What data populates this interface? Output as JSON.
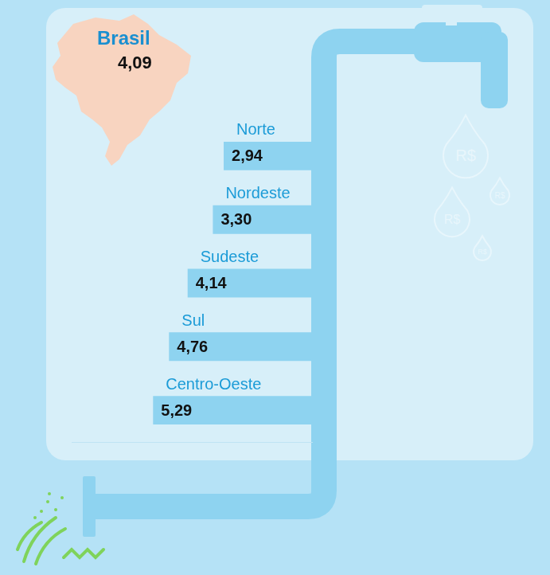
{
  "chart_data": {
    "type": "bar",
    "orientation": "horizontal",
    "categories": [
      "Norte",
      "Nordeste",
      "Sudeste",
      "Sul",
      "Centro-Oeste"
    ],
    "values": [
      2.94,
      3.3,
      4.14,
      4.76,
      5.29
    ],
    "value_labels": [
      "2,94",
      "3,30",
      "4,14",
      "4,76",
      "5,29"
    ],
    "data_labels": true,
    "color": "#8ed3f0",
    "xlim": [
      0,
      8
    ],
    "grid": false,
    "tick_labels": false,
    "annotations": [
      {
        "text": "Brasil",
        "value": 4.09,
        "value_label": "4,09"
      }
    ]
  },
  "icon_text": "R$"
}
